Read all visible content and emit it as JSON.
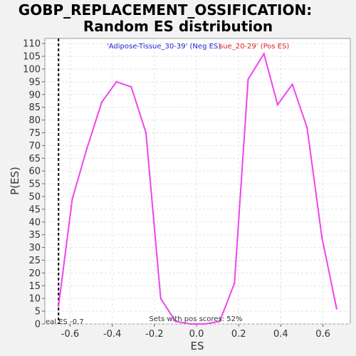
{
  "chart_data": {
    "type": "line",
    "title": "GOBP_REPLACEMENT_OSSIFICATION:",
    "subtitle": "Random ES distribution",
    "xlabel": "ES",
    "ylabel": "P(ES)",
    "xlim": [
      -0.72,
      0.73
    ],
    "ylim": [
      0,
      112
    ],
    "xticks": [
      "-0.6",
      "-0.4",
      "-0.2",
      "0.0",
      "0.2",
      "0.4",
      "0.6"
    ],
    "xtick_values": [
      -0.6,
      -0.4,
      -0.2,
      0.0,
      0.2,
      0.4,
      0.6
    ],
    "yticks": [
      "0",
      "5",
      "10",
      "15",
      "20",
      "25",
      "30",
      "35",
      "40",
      "45",
      "50",
      "55",
      "60",
      "65",
      "70",
      "75",
      "80",
      "85",
      "90",
      "95",
      "100",
      "105",
      "110"
    ],
    "ytick_values": [
      0,
      5,
      10,
      15,
      20,
      25,
      30,
      35,
      40,
      45,
      50,
      55,
      60,
      65,
      70,
      75,
      80,
      85,
      90,
      95,
      100,
      105,
      110
    ],
    "grid": true,
    "series": [
      {
        "color": "#ee44ee",
        "x": [
          -0.655,
          -0.59,
          -0.52,
          -0.45,
          -0.38,
          -0.31,
          -0.24,
          -0.17,
          -0.1,
          -0.03,
          0.04,
          0.11,
          0.18,
          0.245,
          0.32,
          0.385,
          0.455,
          0.525,
          0.595,
          0.665
        ],
        "y": [
          7,
          49,
          69,
          87,
          95,
          93,
          75,
          10,
          1,
          0,
          0,
          1,
          16,
          96,
          106,
          86,
          94,
          77,
          34,
          6
        ]
      }
    ],
    "reference_line": {
      "x": -0.655,
      "style": "dashed",
      "color": "#000000"
    },
    "annotations": {
      "neg_label": "'Adipose-Tissue_30-39' (Neg ES)",
      "neg_color": "#2222cc",
      "pos_label": "sue_20-29' (Pos ES)",
      "pos_color": "#dd2222",
      "real_es_label": "eal ES -0.7",
      "pos_scores_label": "Sets with pos scores: 52%"
    }
  }
}
